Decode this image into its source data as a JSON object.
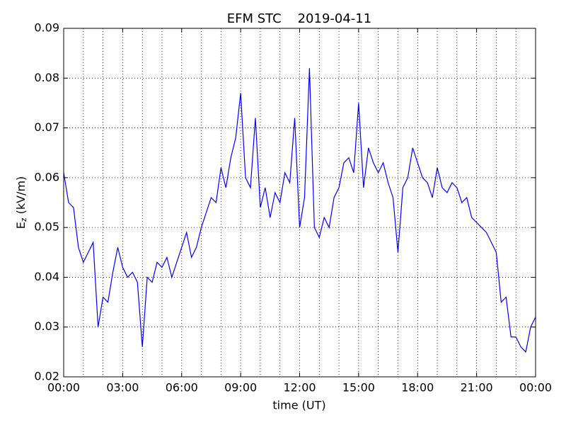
{
  "chart_data": {
    "type": "line",
    "title": "EFM STC    2019-04-11",
    "xlabel": "time (UT)",
    "ylabel_main": "E",
    "ylabel_sub": "z",
    "ylabel_unit": "(kV/m)",
    "x": [
      0,
      0.25,
      0.5,
      0.75,
      1,
      1.25,
      1.5,
      1.75,
      2,
      2.25,
      2.5,
      2.75,
      3,
      3.25,
      3.5,
      3.75,
      4,
      4.25,
      4.5,
      4.75,
      5,
      5.25,
      5.5,
      5.75,
      6,
      6.25,
      6.5,
      6.75,
      7,
      7.25,
      7.5,
      7.75,
      8,
      8.25,
      8.5,
      8.75,
      9,
      9.25,
      9.5,
      9.75,
      10,
      10.25,
      10.5,
      10.75,
      11,
      11.25,
      11.5,
      11.75,
      12,
      12.25,
      12.5,
      12.75,
      13,
      13.25,
      13.5,
      13.75,
      14,
      14.25,
      14.5,
      14.75,
      15,
      15.25,
      15.5,
      15.75,
      16,
      16.25,
      16.5,
      16.75,
      17,
      17.25,
      17.5,
      17.75,
      18,
      18.25,
      18.5,
      18.75,
      19,
      19.25,
      19.5,
      19.75,
      20,
      20.25,
      20.5,
      20.75,
      21,
      21.25,
      21.5,
      21.75,
      22,
      22.25,
      22.5,
      22.75,
      23,
      23.25,
      23.5,
      23.75,
      24
    ],
    "series": [
      {
        "name": "Ez",
        "color": "#0000ff",
        "values": [
          0.061,
          0.055,
          0.054,
          0.046,
          0.043,
          0.045,
          0.047,
          0.03,
          0.036,
          0.035,
          0.041,
          0.046,
          0.042,
          0.04,
          0.041,
          0.039,
          0.026,
          0.04,
          0.039,
          0.043,
          0.042,
          0.044,
          0.04,
          0.043,
          0.046,
          0.049,
          0.044,
          0.046,
          0.05,
          0.053,
          0.056,
          0.055,
          0.062,
          0.058,
          0.064,
          0.068,
          0.077,
          0.06,
          0.058,
          0.072,
          0.054,
          0.058,
          0.052,
          0.057,
          0.055,
          0.061,
          0.059,
          0.072,
          0.05,
          0.056,
          0.082,
          0.05,
          0.048,
          0.052,
          0.05,
          0.056,
          0.058,
          0.063,
          0.064,
          0.061,
          0.075,
          0.058,
          0.066,
          0.063,
          0.061,
          0.063,
          0.059,
          0.056,
          0.045,
          0.058,
          0.06,
          0.066,
          0.063,
          0.06,
          0.059,
          0.056,
          0.062,
          0.058,
          0.057,
          0.059,
          0.058,
          0.055,
          0.056,
          0.052,
          0.051,
          0.05,
          0.049,
          0.047,
          0.045,
          0.035,
          0.036,
          0.028,
          0.028,
          0.026,
          0.025,
          0.03,
          0.032
        ]
      }
    ],
    "xlim": [
      0,
      24
    ],
    "xticks": [
      {
        "value": 0,
        "label": "00:00"
      },
      {
        "value": 3,
        "label": "03:00"
      },
      {
        "value": 6,
        "label": "06:00"
      },
      {
        "value": 9,
        "label": "09:00"
      },
      {
        "value": 12,
        "label": "12:00"
      },
      {
        "value": 15,
        "label": "15:00"
      },
      {
        "value": 18,
        "label": "18:00"
      },
      {
        "value": 21,
        "label": "21:00"
      },
      {
        "value": 24,
        "label": "00:00"
      }
    ],
    "xminorticks": [
      1,
      2,
      4,
      5,
      7,
      8,
      10,
      11,
      13,
      14,
      16,
      17,
      19,
      20,
      22,
      23
    ],
    "ylim": [
      0.02,
      0.09
    ],
    "yticks": [
      0.02,
      0.03,
      0.04,
      0.05,
      0.06,
      0.07,
      0.08,
      0.09
    ],
    "ytick_labels": [
      "0.02",
      "0.03",
      "0.04",
      "0.05",
      "0.06",
      "0.07",
      "0.08",
      "0.09"
    ],
    "grid": true
  }
}
